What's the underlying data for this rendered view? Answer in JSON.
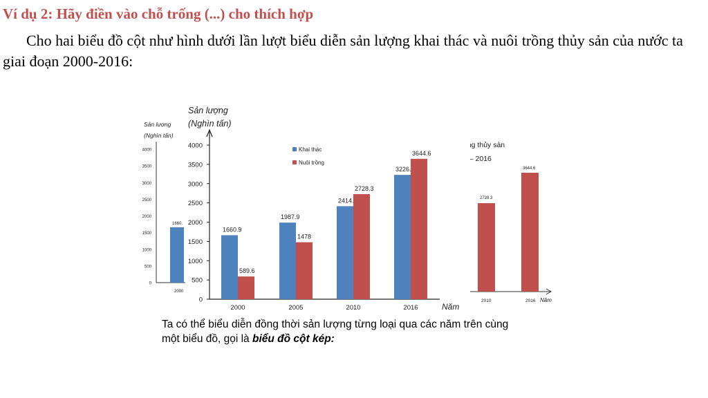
{
  "slide": {
    "title": "Ví dụ 2: Hãy điền vào chỗ trống (...) cho thích hợp",
    "intro": "Cho hai biểu đồ cột như hình dưới lần lượt biểu diễn sản lượng khai thác và nuôi trồng thủy sản của nước ta giai đoạn 2000-2016:",
    "caption_prefix": "Ta có thể biểu diễn đồng thời sản lượng từng loại qua các năm trên cùng một biểu đồ, gọi là ",
    "caption_emphasis": "biểu đồ cột kép:"
  },
  "colors": {
    "khai_thac": "#4f81bd",
    "nuoi_trong": "#c0504d",
    "title": "#c0504d"
  },
  "chart_data": [
    {
      "id": "main",
      "type": "bar",
      "title": "",
      "ylabel_line1": "Sản lượng",
      "ylabel_line2": "(Nghìn tấn)",
      "xlabel": "Năm",
      "categories": [
        "2000",
        "2005",
        "2010",
        "2016"
      ],
      "series": [
        {
          "name": "Khai thác",
          "values": [
            1660.9,
            1987.9,
            2414.4,
            3226.1
          ]
        },
        {
          "name": "Nuôi trồng",
          "values": [
            589.6,
            1478,
            2728.3,
            3644.6
          ]
        }
      ],
      "value_labels": [
        [
          "1660.9",
          "1987.9",
          "2414.4",
          "3226.1"
        ],
        [
          "589.6",
          "1478",
          "2728.3",
          "3644.6"
        ]
      ],
      "ylim": [
        0,
        4000
      ],
      "yticks": [
        "0",
        "500",
        "1000",
        "1500",
        "2000",
        "2500",
        "3000",
        "3500",
        "4000"
      ],
      "legend_position": "top-left",
      "grid": false
    },
    {
      "id": "left-background",
      "type": "bar",
      "ylabel_line1": "Sản lượng",
      "ylabel_line2": "(Nghìn tấn)",
      "categories": [
        "2000"
      ],
      "values": [
        1660.9
      ],
      "value_label": "1660.",
      "ylim": [
        0,
        4000
      ],
      "yticks": [
        "0",
        "500",
        "1000",
        "1500",
        "2000",
        "2500",
        "3000",
        "3500",
        "4000"
      ]
    },
    {
      "id": "right-background",
      "type": "bar",
      "title_line1": "ồng thủy sản",
      "title_line2": "0 – 2016",
      "xlabel": "Năm",
      "categories": [
        "2010",
        "2016"
      ],
      "values": [
        2728.3,
        3644.6
      ],
      "value_labels": [
        "2728.3",
        "3644.6"
      ]
    }
  ]
}
